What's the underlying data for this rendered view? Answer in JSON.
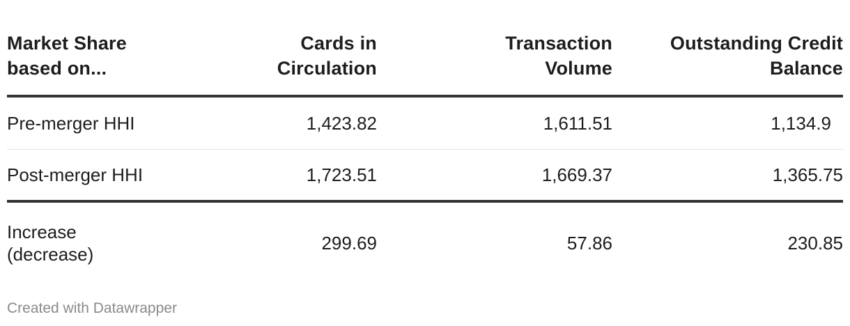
{
  "chart_data": {
    "type": "table",
    "columns": [
      "Market Share based on...",
      "Cards in Circulation",
      "Transaction Volume",
      "Outstanding Credit Balance"
    ],
    "rows": [
      [
        "Pre-merger HHI",
        "1,423.82",
        "1,611.51",
        "1,134.9"
      ],
      [
        "Post-merger HHI",
        "1,723.51",
        "1,669.37",
        "1,365.75"
      ],
      [
        "Increase (decrease)",
        "299.69",
        "57.86",
        "230.85"
      ]
    ]
  },
  "footer": {
    "credit": "Created with Datawrapper"
  }
}
